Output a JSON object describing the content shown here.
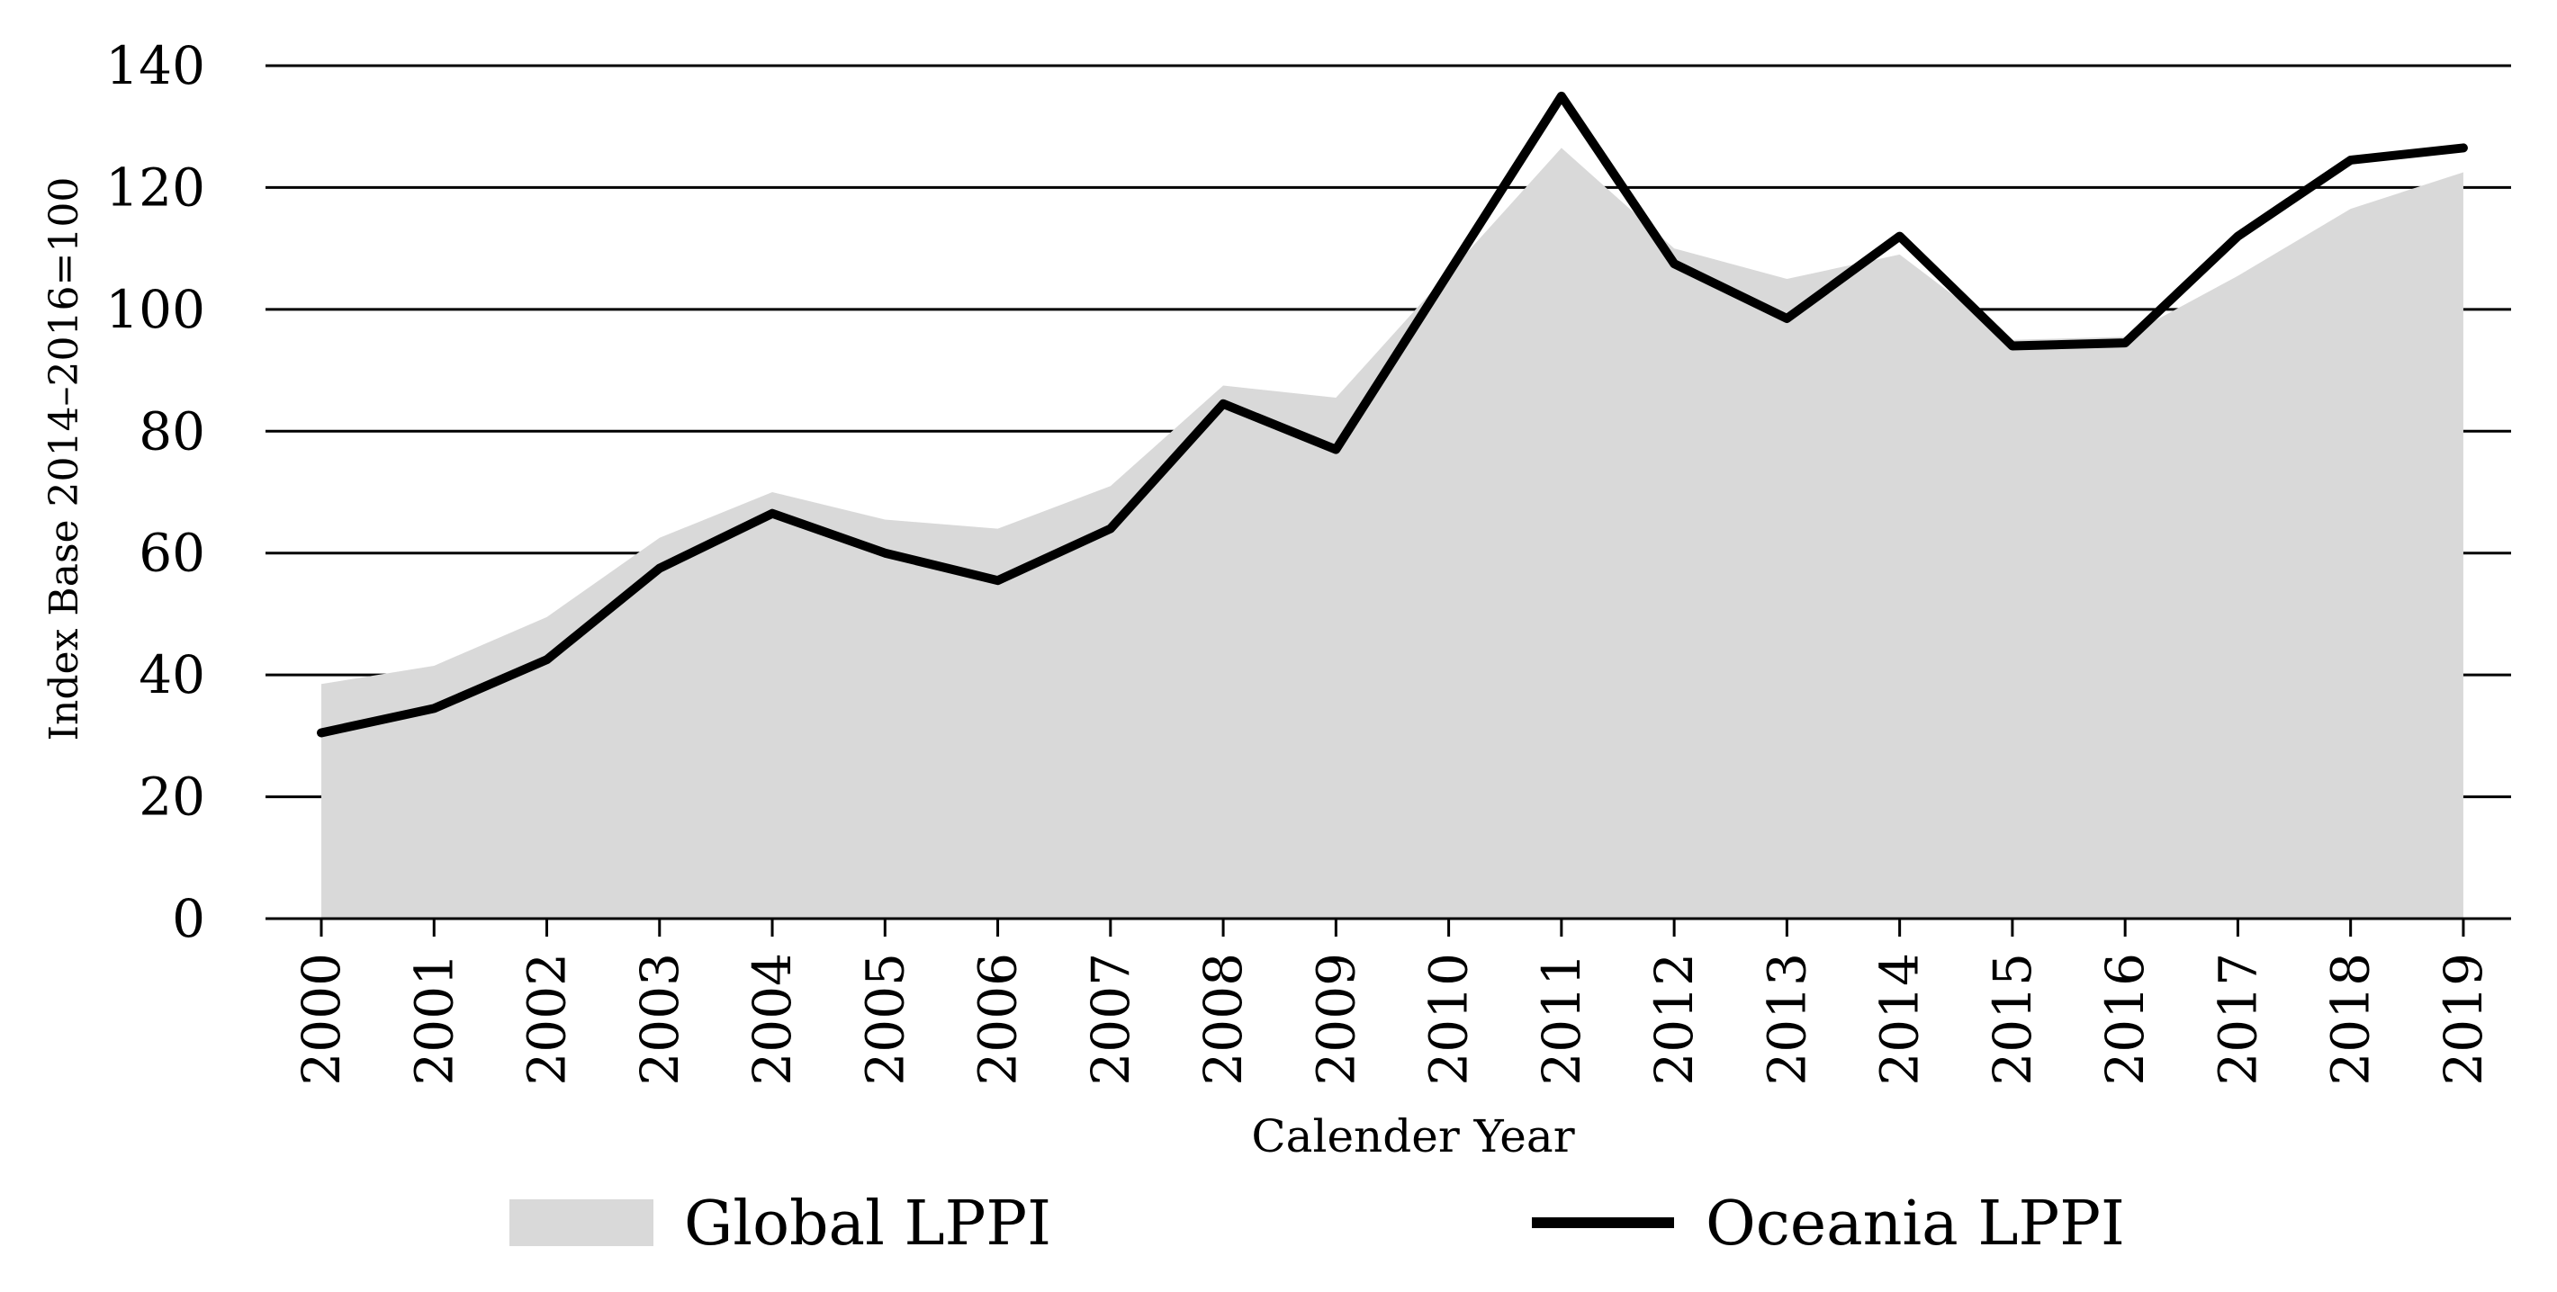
{
  "chart_data": {
    "type": "area",
    "title": "",
    "xlabel": "Calender Year",
    "ylabel": "Index Base 2014–2016=100",
    "ylim": [
      0,
      140
    ],
    "yticks": [
      0,
      20,
      40,
      60,
      80,
      100,
      120,
      140
    ],
    "grid": true,
    "legend_position": "bottom",
    "categories": [
      "2000",
      "2001",
      "2002",
      "2003",
      "2004",
      "2005",
      "2006",
      "2007",
      "2008",
      "2009",
      "2010",
      "2011",
      "2012",
      "2013",
      "2014",
      "2015",
      "2016",
      "2017",
      "2018",
      "2019"
    ],
    "series": [
      {
        "name": "Global LPPI",
        "kind": "area",
        "color": "#d9d9d9",
        "values": [
          38.5,
          41.5,
          49.5,
          62.5,
          70,
          65.5,
          64,
          71,
          87.5,
          85.5,
          106,
          126.5,
          110,
          105,
          109,
          95,
          95.5,
          105.5,
          116.5,
          122.5
        ]
      },
      {
        "name": "Oceania LPPI",
        "kind": "line",
        "color": "#000000",
        "values": [
          30.5,
          34.5,
          42.5,
          57.5,
          66.5,
          60,
          55.5,
          64,
          84.5,
          77,
          106,
          135,
          107.5,
          98.5,
          112,
          94,
          94.5,
          112,
          124.5,
          126.5
        ]
      }
    ]
  }
}
